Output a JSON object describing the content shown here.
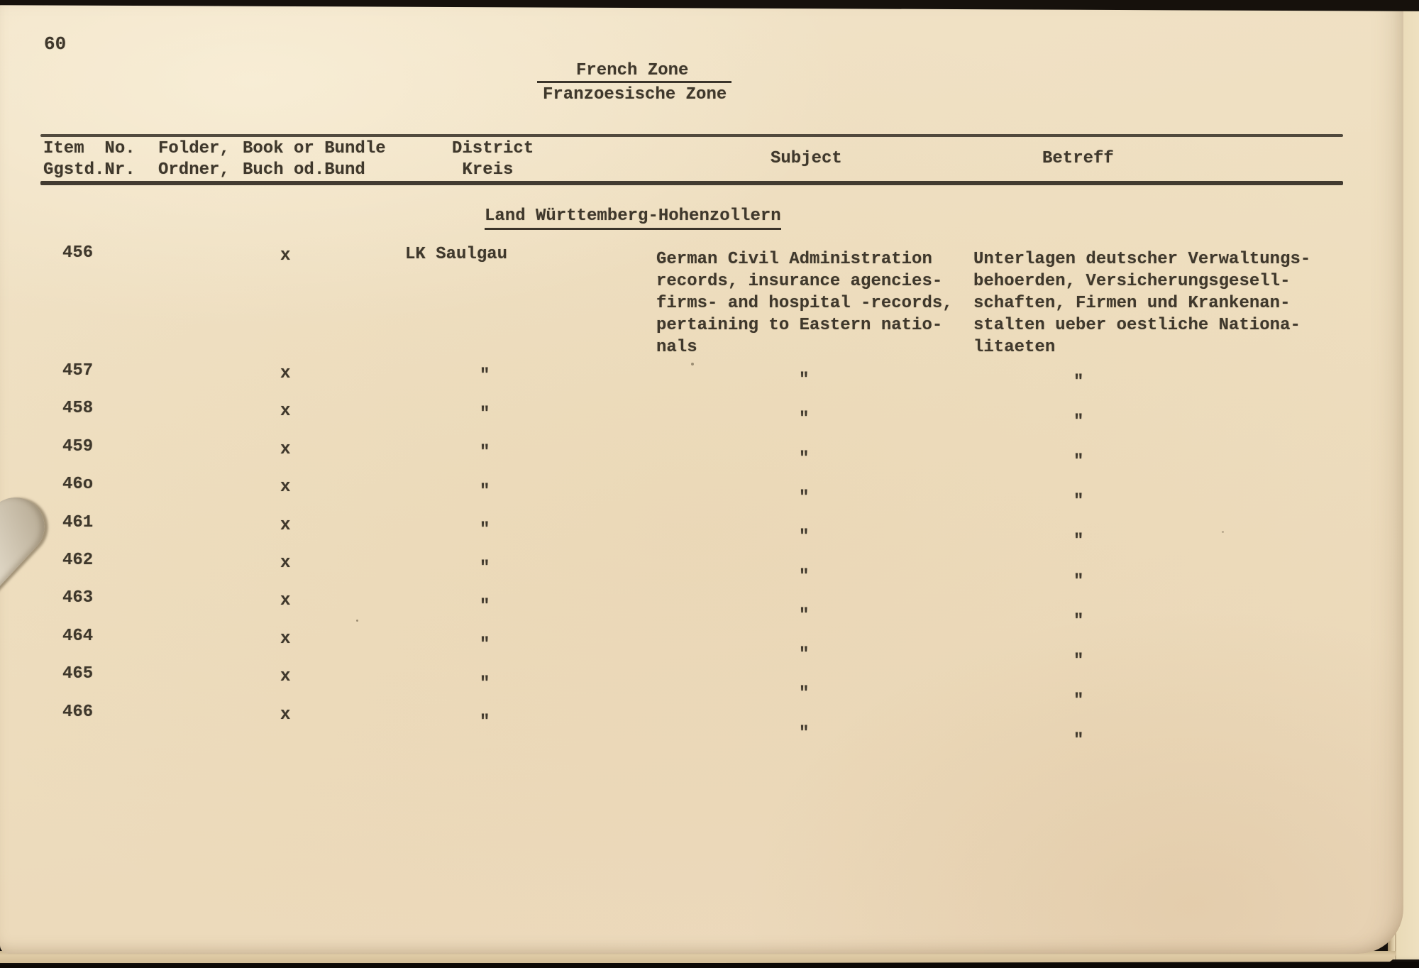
{
  "page": {
    "number": "60"
  },
  "title": {
    "english": "French Zone",
    "german": "Franzoesische Zone"
  },
  "table": {
    "headers": {
      "col1": [
        "Item  No.",
        "Ggstd.Nr."
      ],
      "col2": [
        "Folder,",
        "Ordner,"
      ],
      "col3": [
        "Book or Bundle",
        "Buch od.Bund"
      ],
      "col4": [
        "District",
        " Kreis"
      ],
      "col5": [
        "Subject"
      ],
      "col6": [
        "Betreff"
      ]
    },
    "section_heading": "Land Württemberg-Hohenzollern",
    "rows": [
      {
        "item": "456",
        "book": "x",
        "district": "LK Saulgau",
        "subject": "German Civil Administration\nrecords, insurance agencies-\nfirms- and hospital -records,\npertaining to Eastern natio-\nnals",
        "betreff": "Unterlagen deutscher Verwaltungs-\nbehoerden, Versicherungsgesell-\nschaften, Firmen und Krankenan-\nstalten ueber oestliche Nationa-\nlitaeten"
      },
      {
        "item": "457",
        "book": "x",
        "district": "\"",
        "subject": "\"",
        "betreff": "\""
      },
      {
        "item": "458",
        "book": "x",
        "district": "\"",
        "subject": "\"",
        "betreff": "\""
      },
      {
        "item": "459",
        "book": "x",
        "district": "\"",
        "subject": "\"",
        "betreff": "\""
      },
      {
        "item": "46o",
        "book": "x",
        "district": "\"",
        "subject": "\"",
        "betreff": "\""
      },
      {
        "item": "461",
        "book": "x",
        "district": "\"",
        "subject": "\"",
        "betreff": "\""
      },
      {
        "item": "462",
        "book": "x",
        "district": "\"",
        "subject": "\"",
        "betreff": "\""
      },
      {
        "item": "463",
        "book": "x",
        "district": "\"",
        "subject": "\"",
        "betreff": "\""
      },
      {
        "item": "464",
        "book": "x",
        "district": "\"",
        "subject": "\"",
        "betreff": "\""
      },
      {
        "item": "465",
        "book": "x",
        "district": "\"",
        "subject": "\"",
        "betreff": "\""
      },
      {
        "item": "466",
        "book": "x",
        "district": "\"",
        "subject": "\"",
        "betreff": "\""
      }
    ]
  },
  "colors": {
    "paper": "#eedebf",
    "ink": "#3f382c",
    "scanner_background": "#15100c",
    "underlying_page": "#e9dab6"
  }
}
